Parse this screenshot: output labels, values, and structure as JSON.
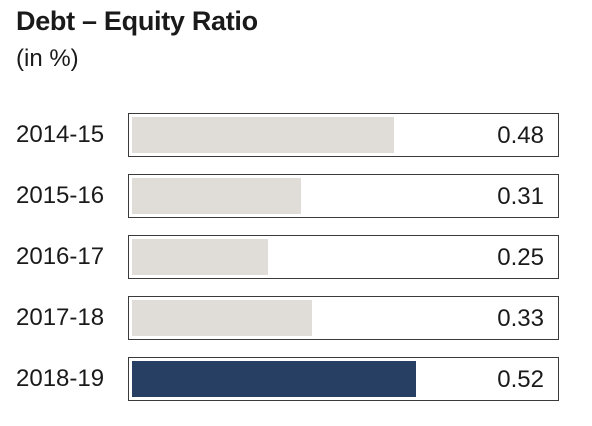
{
  "title": "Debt – Equity Ratio",
  "subtitle": "(in %)",
  "colors": {
    "bar_default": "#e0dcd8",
    "bar_highlight": "#263f62"
  },
  "chart_data": {
    "type": "bar",
    "orientation": "horizontal",
    "title": "Debt – Equity Ratio",
    "subtitle": "(in %)",
    "categories": [
      "2014-15",
      "2015-16",
      "2016-17",
      "2017-18",
      "2018-19"
    ],
    "values": [
      0.48,
      0.31,
      0.25,
      0.33,
      0.52
    ],
    "value_labels": [
      "0.48",
      "0.31",
      "0.25",
      "0.33",
      "0.52"
    ],
    "highlight_index": 4,
    "xlim": [
      0,
      0.74
    ],
    "grid": false,
    "legend": "none"
  }
}
